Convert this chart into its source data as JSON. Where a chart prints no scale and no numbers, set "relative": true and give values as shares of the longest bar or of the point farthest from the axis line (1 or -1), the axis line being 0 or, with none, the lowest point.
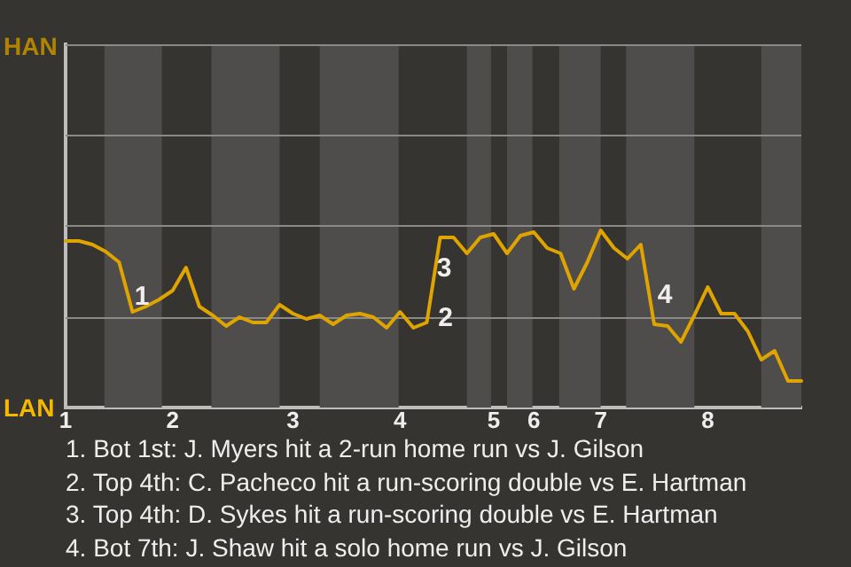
{
  "chart_data": {
    "type": "line",
    "relative": true,
    "categories": [
      "1",
      null,
      null,
      null,
      null,
      null,
      null,
      null,
      "2",
      null,
      null,
      null,
      null,
      null,
      null,
      null,
      null,
      "3",
      null,
      null,
      null,
      null,
      null,
      null,
      null,
      "4",
      null,
      null,
      null,
      null,
      null,
      null,
      "5",
      null,
      null,
      "6",
      null,
      null,
      null,
      null,
      "7",
      null,
      null,
      null,
      null,
      null,
      null,
      null,
      "8",
      null,
      null,
      null,
      null,
      null,
      null,
      null
    ],
    "series": [
      {
        "color": "#e0a400",
        "values": [
          0.94,
          0.94,
          0.92,
          0.88,
          0.82,
          0.54,
          0.57,
          0.61,
          0.66,
          0.79,
          0.57,
          0.52,
          0.46,
          0.51,
          0.48,
          0.48,
          0.58,
          0.53,
          0.5,
          0.52,
          0.47,
          0.52,
          0.53,
          0.51,
          0.45,
          0.54,
          0.45,
          0.48,
          0.96,
          0.96,
          0.87,
          0.96,
          0.98,
          0.87,
          0.97,
          0.99,
          0.9,
          0.87,
          0.67,
          0.82,
          1,
          0.9,
          0.84,
          0.92,
          0.47,
          0.46,
          0.37,
          0.52,
          0.68,
          0.53,
          0.53,
          0.43,
          0.27,
          0.32,
          0.15,
          0.15
        ]
      }
    ],
    "marker": "none",
    "line_style": "solid",
    "legend": false,
    "ref_lines": [
      {
        "axis": "y",
        "value": 0.51,
        "color": "#8a8a88"
      },
      {
        "axis": "y",
        "value": 1.03,
        "color": "#8a8a88"
      },
      {
        "axis": "y",
        "value": 1.54,
        "color": "#8a8a88"
      }
    ],
    "annotations": [
      "HAN",
      "LAN",
      "1",
      "2",
      "3",
      "4",
      "1. Bot 1st: J. Myers hit a 2-run home run vs J. Gilson",
      "2. Top 4th: C. Pacheco hit a run-scoring double vs E. Hartman",
      "3. Top 4th: D. Sykes hit a run-scoring double vs E. Hartman",
      "4. Bot 7th: J. Shaw hit a solo home run vs J. Gilson"
    ]
  }
}
